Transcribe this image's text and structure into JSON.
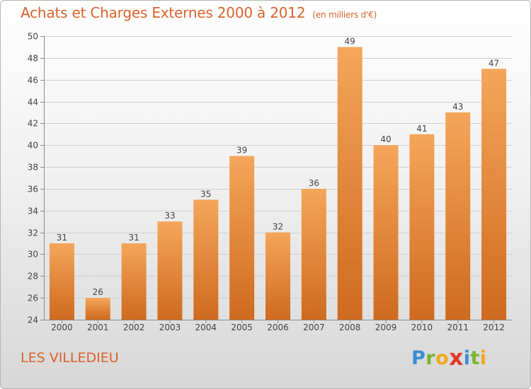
{
  "header": {
    "title": "Achats et Charges Externes 2000 à 2012",
    "subtitle": "(en milliers d'€)"
  },
  "footer": {
    "town": "LES VILLEDIEU",
    "logo": {
      "text": "Proxiti",
      "letters": [
        {
          "char": "P",
          "color": "#3a8fd6"
        },
        {
          "char": "r",
          "color": "#79b530"
        },
        {
          "char": "o",
          "color": "#f2a81d"
        },
        {
          "char": "x",
          "color": "#e2362b"
        },
        {
          "char": "i",
          "color": "#3a8fd6"
        },
        {
          "char": "t",
          "color": "#79b530"
        },
        {
          "char": "i",
          "color": "#f2a81d"
        }
      ]
    }
  },
  "colors": {
    "accent": "#d9622b",
    "bar_top": "#f4a65a",
    "bar_bottom": "#cf6a1e",
    "axis_text": "#444444",
    "grid": "#d0d0d0"
  },
  "chart_data": {
    "type": "bar",
    "categories": [
      "2000",
      "2001",
      "2002",
      "2003",
      "2004",
      "2005",
      "2006",
      "2007",
      "2008",
      "2009",
      "2010",
      "2011",
      "2012"
    ],
    "values": [
      31,
      26,
      31,
      33,
      35,
      39,
      32,
      36,
      49,
      40,
      41,
      43,
      47
    ],
    "title": "Achats et Charges Externes 2000 à 2012",
    "subtitle": "(en milliers d'€)",
    "ylim": [
      24,
      50
    ],
    "yticks": [
      24,
      26,
      28,
      30,
      32,
      34,
      36,
      38,
      40,
      42,
      44,
      46,
      48,
      50
    ],
    "grid": true,
    "data_labels": true
  }
}
